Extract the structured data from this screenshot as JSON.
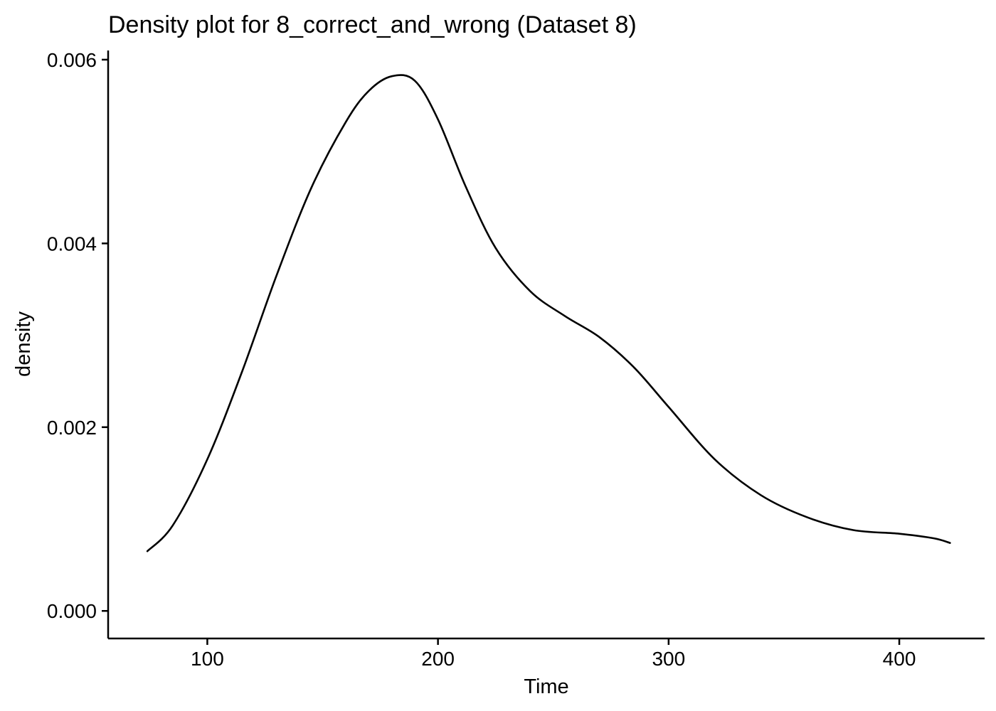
{
  "chart_data": {
    "type": "line",
    "title": "Density plot for 8_correct_and_wrong (Dataset 8)",
    "xlabel": "Time",
    "ylabel": "density",
    "xlim": [
      57,
      437
    ],
    "ylim": [
      -0.0003,
      0.0061
    ],
    "x_ticks": [
      100,
      200,
      300,
      400
    ],
    "x_tick_labels": [
      "100",
      "200",
      "300",
      "400"
    ],
    "y_ticks": [
      0.0,
      0.002,
      0.004,
      0.006
    ],
    "y_tick_labels": [
      "0.000",
      "0.002",
      "0.004",
      "0.006"
    ],
    "grid": false,
    "legend": "none",
    "series": [
      {
        "color": "#000000",
        "x": [
          74,
          85,
          100,
          115,
          130,
          145,
          160,
          170,
          180,
          190,
          200,
          212,
          225,
          240,
          255,
          270,
          285,
          300,
          320,
          340,
          360,
          380,
          400,
          415,
          422
        ],
        "y": [
          0.00065,
          0.00093,
          0.00165,
          0.0026,
          0.00365,
          0.0046,
          0.00532,
          0.00566,
          0.00582,
          0.00577,
          0.00535,
          0.00462,
          0.00395,
          0.00348,
          0.00321,
          0.00298,
          0.00265,
          0.00222,
          0.00165,
          0.00126,
          0.00102,
          0.00088,
          0.00084,
          0.00079,
          0.00074
        ]
      }
    ]
  }
}
